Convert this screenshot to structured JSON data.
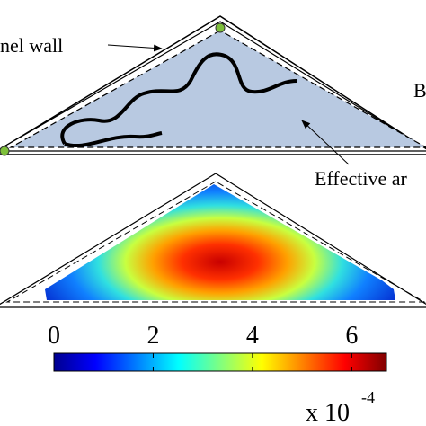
{
  "figure": {
    "labels": {
      "wall": "nel wall",
      "side": "B",
      "area": "Effective ar"
    },
    "colorbar": {
      "lim": [
        0,
        6.7
      ],
      "ticks": [
        0,
        2,
        4,
        6
      ],
      "multiplier": "x 10",
      "exponent": "-4"
    }
  }
}
